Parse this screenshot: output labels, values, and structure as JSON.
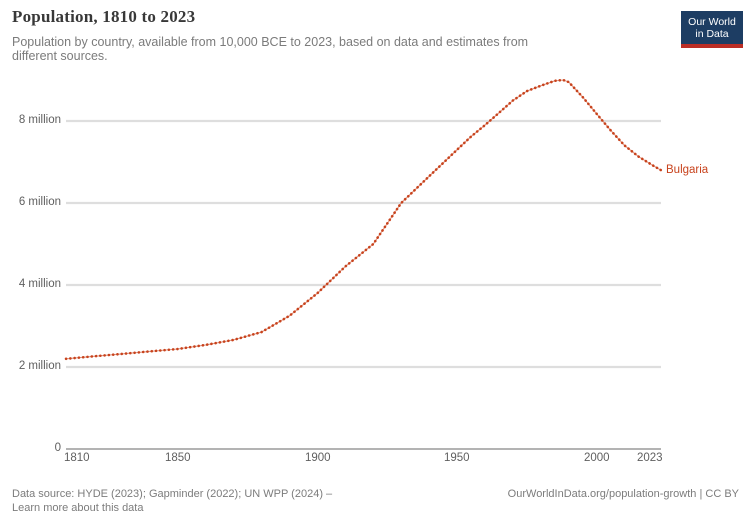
{
  "header": {
    "title": "Population, 1810 to 2023",
    "subtitle_line1": "Population by country, available from 10,000 BCE to 2023, based on data and estimates from",
    "subtitle_line2": "different sources."
  },
  "logo": {
    "line1": "Our World",
    "line2": "in Data",
    "bg_color": "#1d3d63",
    "bar_color": "#bb2d25"
  },
  "colors": {
    "accent": "#c8431d",
    "gridline": "#dedede",
    "axis_line": "#9a9a9a",
    "tick_label": "#5f5f5f",
    "muted_text": "#7c7c7c"
  },
  "chart_data": {
    "type": "line",
    "title": "Population, 1810 to 2023",
    "xlabel": "",
    "ylabel": "",
    "xlim": [
      1810,
      2023
    ],
    "ylim": [
      0,
      9.3
    ],
    "grid": true,
    "legend_position": "end-of-line",
    "y_ticks": [
      {
        "value": 8,
        "label": "8 million"
      },
      {
        "value": 6,
        "label": "6 million"
      },
      {
        "value": 4,
        "label": "4 million"
      },
      {
        "value": 2,
        "label": "2 million"
      },
      {
        "value": 0,
        "label": "0"
      }
    ],
    "x_ticks": [
      {
        "value": 1810,
        "label": "1810"
      },
      {
        "value": 1850,
        "label": "1850"
      },
      {
        "value": 1900,
        "label": "1900"
      },
      {
        "value": 1950,
        "label": "1950"
      },
      {
        "value": 2000,
        "label": "2000"
      },
      {
        "value": 2023,
        "label": "2023"
      }
    ],
    "series": [
      {
        "name": "Bulgaria",
        "color": "#c8431d",
        "unit": "million people",
        "x": [
          1810,
          1820,
          1830,
          1840,
          1850,
          1860,
          1870,
          1880,
          1890,
          1900,
          1910,
          1920,
          1930,
          1940,
          1950,
          1955,
          1960,
          1965,
          1970,
          1975,
          1980,
          1985,
          1988,
          1990,
          1995,
          2000,
          2005,
          2010,
          2015,
          2020,
          2023
        ],
        "values": [
          2.2,
          2.26,
          2.32,
          2.38,
          2.44,
          2.54,
          2.66,
          2.85,
          3.25,
          3.8,
          4.45,
          5.0,
          6.0,
          6.65,
          7.3,
          7.62,
          7.9,
          8.2,
          8.5,
          8.73,
          8.86,
          8.98,
          9.0,
          8.95,
          8.58,
          8.17,
          7.77,
          7.4,
          7.13,
          6.92,
          6.8
        ]
      }
    ]
  },
  "footer": {
    "source_line1": "Data source: HYDE (2023); Gapminder (2022); UN WPP (2024) –",
    "source_line2": "Learn more about this data",
    "right": "OurWorldInData.org/population-growth | CC BY"
  }
}
